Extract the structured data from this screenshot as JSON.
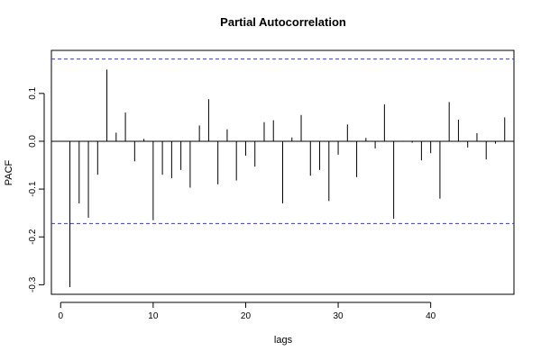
{
  "chart_data": {
    "type": "bar",
    "title": "Partial Autocorrelation",
    "xlabel": "lags",
    "ylabel": "PACF",
    "xlim": [
      -1,
      49
    ],
    "ylim": [
      -0.32,
      0.19
    ],
    "x_ticks": [
      0,
      10,
      20,
      30,
      40
    ],
    "y_ticks": [
      -0.3,
      -0.2,
      -0.1,
      0.0,
      0.1
    ],
    "y_tick_labels": [
      "-0.3",
      "-0.2",
      "-0.1",
      "0.0",
      "0.1"
    ],
    "confidence_bounds": [
      0.172,
      -0.172
    ],
    "colors": {
      "bars": "#000000",
      "bounds": "#3333ff",
      "axes": "#000000"
    },
    "lags": [
      1,
      2,
      3,
      4,
      5,
      6,
      7,
      8,
      9,
      10,
      11,
      12,
      13,
      14,
      15,
      16,
      17,
      18,
      19,
      20,
      21,
      22,
      23,
      24,
      25,
      26,
      27,
      28,
      29,
      30,
      31,
      32,
      33,
      34,
      35,
      36,
      37,
      38,
      39,
      40,
      41,
      42,
      43,
      44,
      45,
      46,
      47,
      48
    ],
    "values": [
      -0.305,
      -0.13,
      -0.16,
      -0.07,
      0.15,
      0.018,
      0.06,
      -0.042,
      0.005,
      -0.165,
      -0.07,
      -0.077,
      -0.06,
      -0.097,
      0.033,
      0.088,
      -0.09,
      0.025,
      -0.082,
      -0.03,
      -0.053,
      0.04,
      0.044,
      -0.13,
      0.008,
      0.055,
      -0.072,
      -0.06,
      -0.125,
      -0.028,
      0.035,
      -0.075,
      0.007,
      -0.015,
      0.077,
      -0.162,
      0.001,
      -0.003,
      -0.04,
      -0.025,
      -0.12,
      0.082,
      0.045,
      -0.013,
      0.017,
      -0.038,
      -0.005,
      0.05
    ]
  }
}
